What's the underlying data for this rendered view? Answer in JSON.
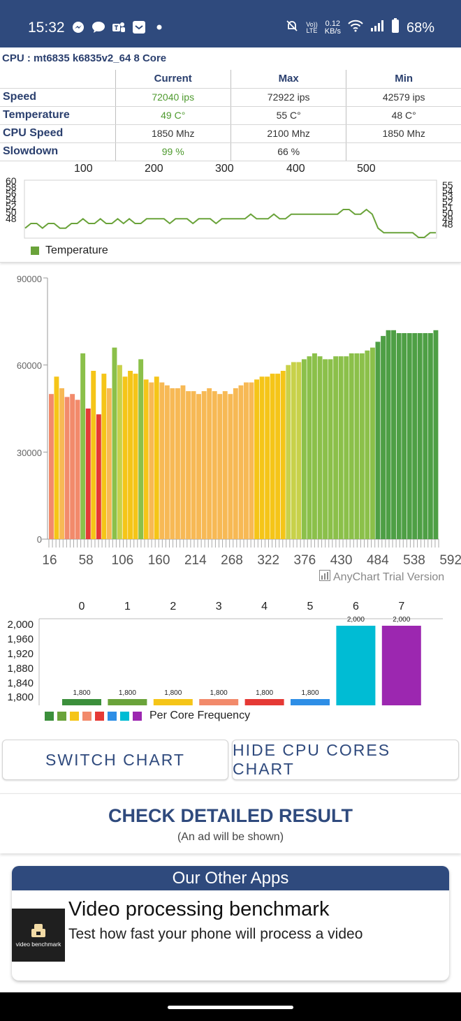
{
  "status_bar": {
    "time": "15:32",
    "left_icons": [
      "messenger-icon",
      "chat-bubble-icon",
      "teams-icon",
      "mail-icon",
      "dot-icon"
    ],
    "net_speed_value": "0.12",
    "net_speed_unit": "KB/s",
    "volte_label_1": "Vo))",
    "volte_label_2": "LTE",
    "battery": "68%"
  },
  "cpu": {
    "title": "CPU : mt6835 k6835v2_64 8 Core",
    "columns": [
      "Current",
      "Max",
      "Min"
    ],
    "rows": [
      {
        "label": "Speed",
        "current": "72040 ips",
        "max": "72922 ips",
        "min": "42579 ips"
      },
      {
        "label": "Temperature",
        "current": "49 C°",
        "max": "55 C°",
        "min": "48 C°"
      },
      {
        "label": "CPU Speed",
        "current": "1850 Mhz",
        "max": "2100 Mhz",
        "min": "1850 Mhz"
      },
      {
        "label": "Slowdown",
        "current": "99 %",
        "max": "66 %",
        "min": ""
      }
    ]
  },
  "temperature_chart": {
    "top_ticks": [
      "100",
      "200",
      "300",
      "400",
      "500"
    ],
    "left_ticks": [
      "60",
      "58",
      "56",
      "54",
      "52",
      "50",
      "48"
    ],
    "right_ticks": [
      "55",
      "54",
      "53",
      "52",
      "51",
      "50",
      "49",
      "48"
    ],
    "legend": "Temperature",
    "color": "#6aa33a"
  },
  "chart_data": [
    {
      "type": "line",
      "series": [
        {
          "name": "Temperature",
          "values": [
            50,
            51,
            51,
            50,
            51,
            51,
            50,
            50,
            51,
            51,
            52,
            51,
            51,
            52,
            51,
            51,
            52,
            51,
            52,
            51,
            51,
            52,
            52,
            52,
            52,
            51,
            52,
            52,
            52,
            51,
            52,
            52,
            52,
            51,
            52,
            52,
            52,
            52,
            52,
            53,
            52,
            52,
            52,
            53,
            52,
            52,
            53,
            53,
            53,
            53,
            53,
            53,
            53,
            53,
            53,
            54,
            54,
            53,
            53,
            54,
            53,
            50,
            49,
            49,
            49,
            49,
            49,
            49,
            48,
            48,
            49,
            49
          ]
        }
      ],
      "ylim": [
        48,
        60
      ],
      "xlim": [
        0,
        592
      ]
    },
    {
      "type": "bar",
      "title": "",
      "x_ticks": [
        "16",
        "58",
        "106",
        "160",
        "214",
        "268",
        "322",
        "376",
        "430",
        "484",
        "538",
        "592"
      ],
      "y_ticks": [
        "90000",
        "60000",
        "30000",
        "0"
      ],
      "ylim": [
        0,
        90000
      ],
      "xlim": [
        0,
        592
      ],
      "series": [
        {
          "values": [
            50000,
            56000,
            52000,
            49000,
            50000,
            48000,
            64000,
            45000,
            58000,
            43000,
            57000,
            52000,
            66000,
            60000,
            56000,
            58000,
            57000,
            62000,
            55000,
            54000,
            56000,
            54000,
            53000,
            52000,
            52000,
            53000,
            51000,
            51000,
            50000,
            51000,
            52000,
            51000,
            50000,
            51000,
            50000,
            52000,
            53000,
            54000,
            54000,
            55000,
            56000,
            56000,
            57000,
            57000,
            58000,
            60000,
            61000,
            61000,
            62000,
            63000,
            64000,
            63000,
            62000,
            62000,
            63000,
            63000,
            63000,
            64000,
            64000,
            64000,
            65000,
            66000,
            68000,
            70000,
            72000,
            72000,
            71000,
            71000,
            71000,
            71000,
            71000,
            71000,
            71000,
            72000
          ]
        }
      ]
    },
    {
      "type": "bar",
      "categories": [
        "0",
        "1",
        "2",
        "3",
        "4",
        "5",
        "6",
        "7"
      ],
      "values": [
        1800,
        1800,
        1800,
        1800,
        1800,
        1800,
        2000,
        2000
      ],
      "value_labels": [
        "1,800",
        "1,800",
        "1,800",
        "1,800",
        "1,800",
        "1,800",
        "2,000",
        "2,000"
      ],
      "y_ticks": [
        "2,000",
        "1,960",
        "1,920",
        "1,880",
        "1,840",
        "1,800"
      ],
      "ylim": [
        1800,
        2000
      ],
      "colors": [
        "#3b8f3b",
        "#6aa33a",
        "#f5c518",
        "#f28a6b",
        "#e53935",
        "#2e8ee6",
        "#00bcd4",
        "#9c27b0"
      ],
      "legend": "Per Core Frequency"
    }
  ],
  "watermark": "AnyChart Trial Version",
  "buttons": {
    "switch_chart": "SWITCH CHART",
    "hide_cores": "HIDE CPU CORES CHART"
  },
  "detailed": {
    "title": "CHECK DETAILED RESULT",
    "subtitle": "(An ad will be shown)"
  },
  "other_apps": {
    "header": "Our Other Apps",
    "app_title": "Video processing benchmark",
    "app_desc": "Test how fast your phone will process a video",
    "thumb_text": "video benchmark"
  }
}
